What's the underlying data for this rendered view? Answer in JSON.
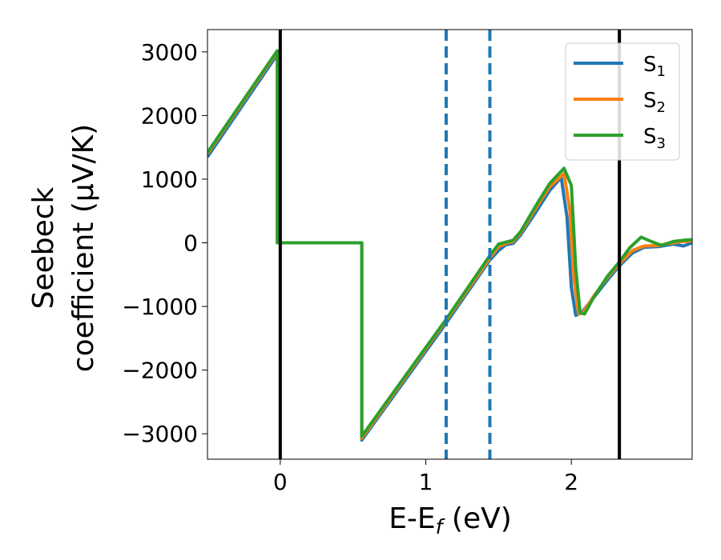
{
  "chart_data": {
    "type": "line",
    "xlabel": "E-E",
    "xlabel_sub": "f",
    "xlabel_unit": " (eV)",
    "ylabel_line1": "Seebeck",
    "ylabel_line2": "coefficient  (μV/K)",
    "xlim": [
      -0.5,
      2.83
    ],
    "ylim": [
      -3400,
      3350
    ],
    "xticks": [
      0,
      1,
      2
    ],
    "xtick_labels": [
      "0",
      "1",
      "2"
    ],
    "yticks": [
      -3000,
      -2000,
      -1000,
      0,
      1000,
      2000,
      3000
    ],
    "ytick_labels": [
      "−3000",
      "−2000",
      "−1000",
      "0",
      "1000",
      "2000",
      "3000"
    ],
    "grid": false,
    "legend_position": "top-right",
    "vlines": [
      {
        "x": 0.0,
        "style": "solid",
        "color": "#000000"
      },
      {
        "x": 2.33,
        "style": "solid",
        "color": "#000000"
      },
      {
        "x": 1.14,
        "style": "dashed",
        "color": "#1f77b4"
      },
      {
        "x": 1.44,
        "style": "dashed",
        "color": "#1f77b4"
      }
    ],
    "series": [
      {
        "name": "S",
        "sub": "1",
        "color": "#1f77b4",
        "x": [
          -0.5,
          -0.02,
          -0.02,
          0.56,
          0.56,
          1.14,
          1.44,
          1.5,
          1.55,
          1.6,
          1.65,
          1.75,
          1.85,
          1.93,
          1.97,
          2.0,
          2.03,
          2.07,
          2.15,
          2.25,
          2.33,
          2.42,
          2.5,
          2.6,
          2.7,
          2.77,
          2.83
        ],
        "y": [
          1350,
          2960,
          0,
          0,
          -3100,
          -1260,
          -270,
          -120,
          -30,
          -10,
          120,
          460,
          820,
          1030,
          400,
          -700,
          -1140,
          -1100,
          -870,
          -580,
          -360,
          -160,
          -70,
          -60,
          -20,
          -50,
          0
        ]
      },
      {
        "name": "S",
        "sub": "2",
        "color": "#ff7f0e",
        "x": [
          -0.5,
          -0.02,
          -0.02,
          0.56,
          0.56,
          1.14,
          1.44,
          1.5,
          1.55,
          1.6,
          1.65,
          1.75,
          1.85,
          1.95,
          1.99,
          2.02,
          2.05,
          2.08,
          2.15,
          2.25,
          2.33,
          2.42,
          2.5,
          2.6,
          2.7,
          2.77,
          2.83
        ],
        "y": [
          1400,
          3000,
          0,
          0,
          -3070,
          -1220,
          -240,
          -60,
          -10,
          20,
          150,
          520,
          880,
          1090,
          500,
          -600,
          -1120,
          -1100,
          -850,
          -540,
          -330,
          -120,
          -50,
          -40,
          0,
          20,
          30
        ]
      },
      {
        "name": "S",
        "sub": "3",
        "color": "#2ca02c",
        "x": [
          -0.5,
          -0.02,
          -0.02,
          0.56,
          0.56,
          1.14,
          1.44,
          1.5,
          1.55,
          1.6,
          1.65,
          1.75,
          1.85,
          1.95,
          2.0,
          2.03,
          2.06,
          2.09,
          2.15,
          2.25,
          2.33,
          2.4,
          2.48,
          2.55,
          2.62,
          2.7,
          2.77,
          2.83
        ],
        "y": [
          1420,
          3020,
          0,
          0,
          -3040,
          -1200,
          -200,
          -20,
          10,
          40,
          170,
          560,
          930,
          1170,
          900,
          -400,
          -1100,
          -1120,
          -870,
          -520,
          -300,
          -80,
          90,
          20,
          -40,
          20,
          40,
          50
        ]
      }
    ]
  }
}
